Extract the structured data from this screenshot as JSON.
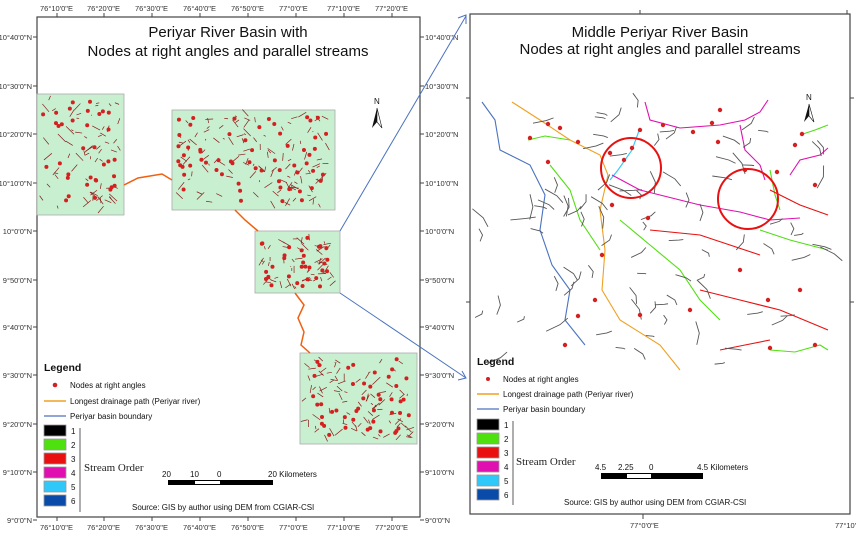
{
  "left_map": {
    "title_line1": "Periyar River Basin with",
    "title_line2": "Nodes at right angles and parallel streams",
    "lon_ticks": [
      "76°10'0\"E",
      "76°20'0\"E",
      "76°30'0\"E",
      "76°40'0\"E",
      "76°50'0\"E",
      "77°0'0\"E",
      "77°10'0\"E",
      "77°20'0\"E"
    ],
    "lat_ticks": [
      "10°40'0\"N",
      "10°30'0\"N",
      "10°20'0\"N",
      "10°10'0\"N",
      "10°0'0\"N",
      "9°50'0\"N",
      "9°40'0\"N",
      "9°30'0\"N",
      "9°20'0\"N",
      "9°10'0\"N",
      "9°0'0\"N"
    ],
    "north_label": "N",
    "scale_labels": [
      "20",
      "10",
      "0",
      "20 Kilometers"
    ],
    "source": "Source: GIS by author using DEM from CGIAR-CSI"
  },
  "right_map": {
    "title_line1": "Middle Periyar River Basin",
    "title_line2": "Nodes at right angles and parallel streams",
    "lon_ticks": [
      "77°0'0\"E",
      "77°10'"
    ],
    "north_label": "N",
    "scale_labels": [
      "4.5",
      "2.25",
      "0",
      "4.5 Kilometers"
    ],
    "source": "Source: GIS by author using DEM from CGIAR-CSI"
  },
  "legend": {
    "heading": "Legend",
    "items": [
      {
        "label": "Nodes at right angles",
        "symbol": "red-dot",
        "color": "#d42020"
      },
      {
        "label": "Longest drainage path (Periyar river)",
        "symbol": "line",
        "color": "#f0a020"
      },
      {
        "label": "Periyar basin boundary",
        "symbol": "line",
        "color": "#4a72c0"
      }
    ],
    "stream_order_label": "Stream Order",
    "stream_orders": [
      {
        "label": "1",
        "color": "#000000"
      },
      {
        "label": "2",
        "color": "#4fe010"
      },
      {
        "label": "3",
        "color": "#e81010"
      },
      {
        "label": "4",
        "color": "#e010b0"
      },
      {
        "label": "5",
        "color": "#30c8f8"
      },
      {
        "label": "6",
        "color": "#0a4aa8"
      }
    ]
  },
  "colors": {
    "basin_fill": "#c8f0d0",
    "stream_dark": "#8a1a1a",
    "node": "#d42020",
    "highlight_circle": "#e81010"
  }
}
